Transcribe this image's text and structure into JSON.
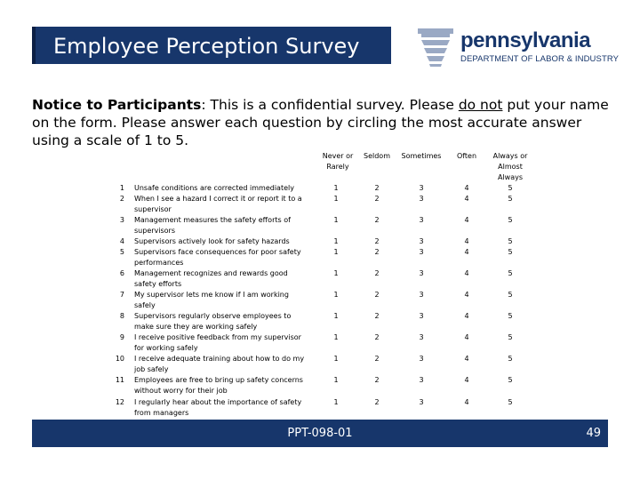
{
  "header": {
    "title": "Employee Perception Survey",
    "logo_name": "pennsylvania",
    "logo_department": "DEPARTMENT OF LABOR & INDUSTRY"
  },
  "notice": {
    "label": "Notice to Participants",
    "text_1": ":  This is a confidential survey.  Please ",
    "emphasis": "do not",
    "text_2": " put your name on the form.  Please answer each question by circling the most accurate answer using a scale of 1 to 5."
  },
  "scale_headers": [
    "Never or Rarely",
    "Seldom",
    "Sometimes",
    "Often",
    "Always or Almost Always"
  ],
  "questions": [
    {
      "num": "1",
      "text": "Unsafe conditions are corrected immediately",
      "scores": [
        "1",
        "2",
        "3",
        "4",
        "5"
      ]
    },
    {
      "num": "2",
      "text": "When I see a hazard I correct it or report it to a supervisor",
      "scores": [
        "1",
        "2",
        "3",
        "4",
        "5"
      ]
    },
    {
      "num": "3",
      "text": "Management measures the safety efforts of supervisors",
      "scores": [
        "1",
        "2",
        "3",
        "4",
        "5"
      ]
    },
    {
      "num": "4",
      "text": "Supervisors actively look for safety hazards",
      "scores": [
        "1",
        "2",
        "3",
        "4",
        "5"
      ]
    },
    {
      "num": "5",
      "text": "Supervisors face consequences for poor safety performances",
      "scores": [
        "1",
        "2",
        "3",
        "4",
        "5"
      ]
    },
    {
      "num": "6",
      "text": "Management recognizes and rewards good safety efforts",
      "scores": [
        "1",
        "2",
        "3",
        "4",
        "5"
      ]
    },
    {
      "num": "7",
      "text": "My supervisor lets me know if I am working safely",
      "scores": [
        "1",
        "2",
        "3",
        "4",
        "5"
      ]
    },
    {
      "num": "8",
      "text": "Supervisors regularly observe employees to make sure they are working safely",
      "scores": [
        "1",
        "2",
        "3",
        "4",
        "5"
      ]
    },
    {
      "num": "9",
      "text": "I receive positive feedback from my supervisor for working safely",
      "scores": [
        "1",
        "2",
        "3",
        "4",
        "5"
      ]
    },
    {
      "num": "10",
      "text": "I receive adequate training about how to do my job safely",
      "scores": [
        "1",
        "2",
        "3",
        "4",
        "5"
      ]
    },
    {
      "num": "11",
      "text": "Employees are free to bring up safety concerns without worry for their job",
      "scores": [
        "1",
        "2",
        "3",
        "4",
        "5"
      ]
    },
    {
      "num": "12",
      "text": "I regularly hear about the importance of safety from managers",
      "scores": [
        "1",
        "2",
        "3",
        "4",
        "5"
      ]
    }
  ],
  "footer": {
    "code": "PPT-098-01",
    "page": "49"
  },
  "colors": {
    "navy": "#17366b",
    "keystone_light": "#9aa9c4"
  }
}
